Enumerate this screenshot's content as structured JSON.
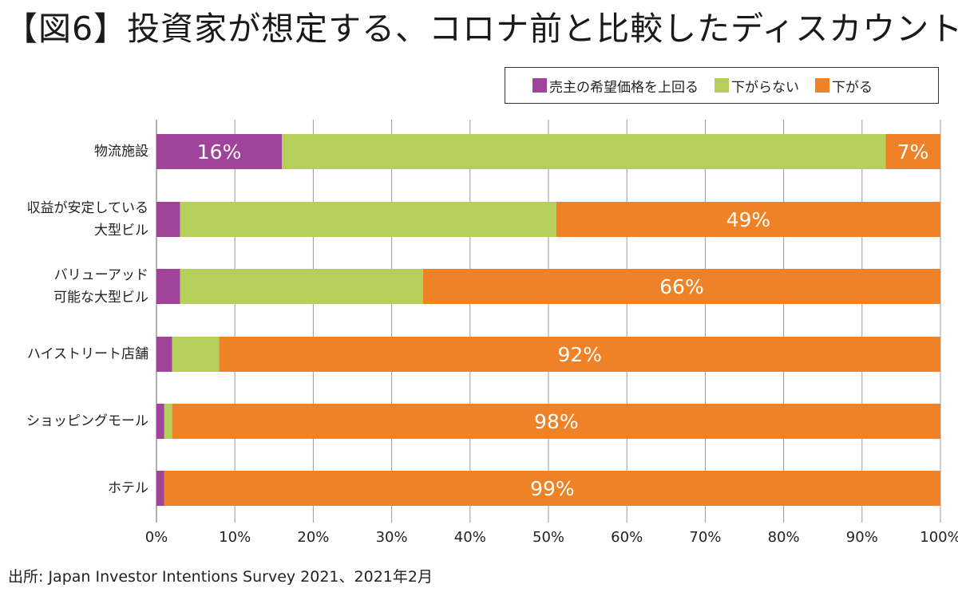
{
  "title": "【図6】投資家が想定する、コロナ前と比較したディスカウント",
  "source": "出所: Japan Investor Intentions Survey 2021、2021年2月",
  "colors": {
    "above": "#a0449a",
    "same": "#b5cf5a",
    "down": "#ef8226",
    "grid": "#999999"
  },
  "chart_data": {
    "type": "bar",
    "orientation": "horizontal",
    "stacked": true,
    "xlim": [
      0,
      100
    ],
    "xticks": [
      "0%",
      "10%",
      "20%",
      "30%",
      "40%",
      "50%",
      "60%",
      "70%",
      "80%",
      "90%",
      "100%"
    ],
    "categories": [
      [
        "物流施設"
      ],
      [
        "収益が安定している",
        "大型ビル"
      ],
      [
        "バリューアッド",
        "可能な大型ビル"
      ],
      [
        "ハイストリート店舗"
      ],
      [
        "ショッピングモール"
      ],
      [
        "ホテル"
      ]
    ],
    "series": [
      {
        "name": "売主の希望価格を上回る",
        "key": "above",
        "values": [
          16,
          3,
          3,
          2,
          1,
          1
        ]
      },
      {
        "name": "下がらない",
        "key": "same",
        "values": [
          77,
          48,
          31,
          6,
          1,
          0
        ]
      },
      {
        "name": "下がる",
        "key": "down",
        "values": [
          7,
          49,
          66,
          92,
          98,
          99
        ]
      }
    ],
    "data_labels": [
      [
        {
          "series": 0,
          "text": "16%"
        },
        {
          "series": 2,
          "text": "7%"
        }
      ],
      [
        {
          "series": 2,
          "text": "49%"
        }
      ],
      [
        {
          "series": 2,
          "text": "66%"
        }
      ],
      [
        {
          "series": 2,
          "text": "92%"
        }
      ],
      [
        {
          "series": 2,
          "text": "98%"
        }
      ],
      [
        {
          "series": 2,
          "text": "99%"
        }
      ]
    ],
    "legend": [
      "売主の希望価格を上回る",
      "下がらない",
      "下がる"
    ],
    "legend_position": "top-right",
    "grid": true
  }
}
